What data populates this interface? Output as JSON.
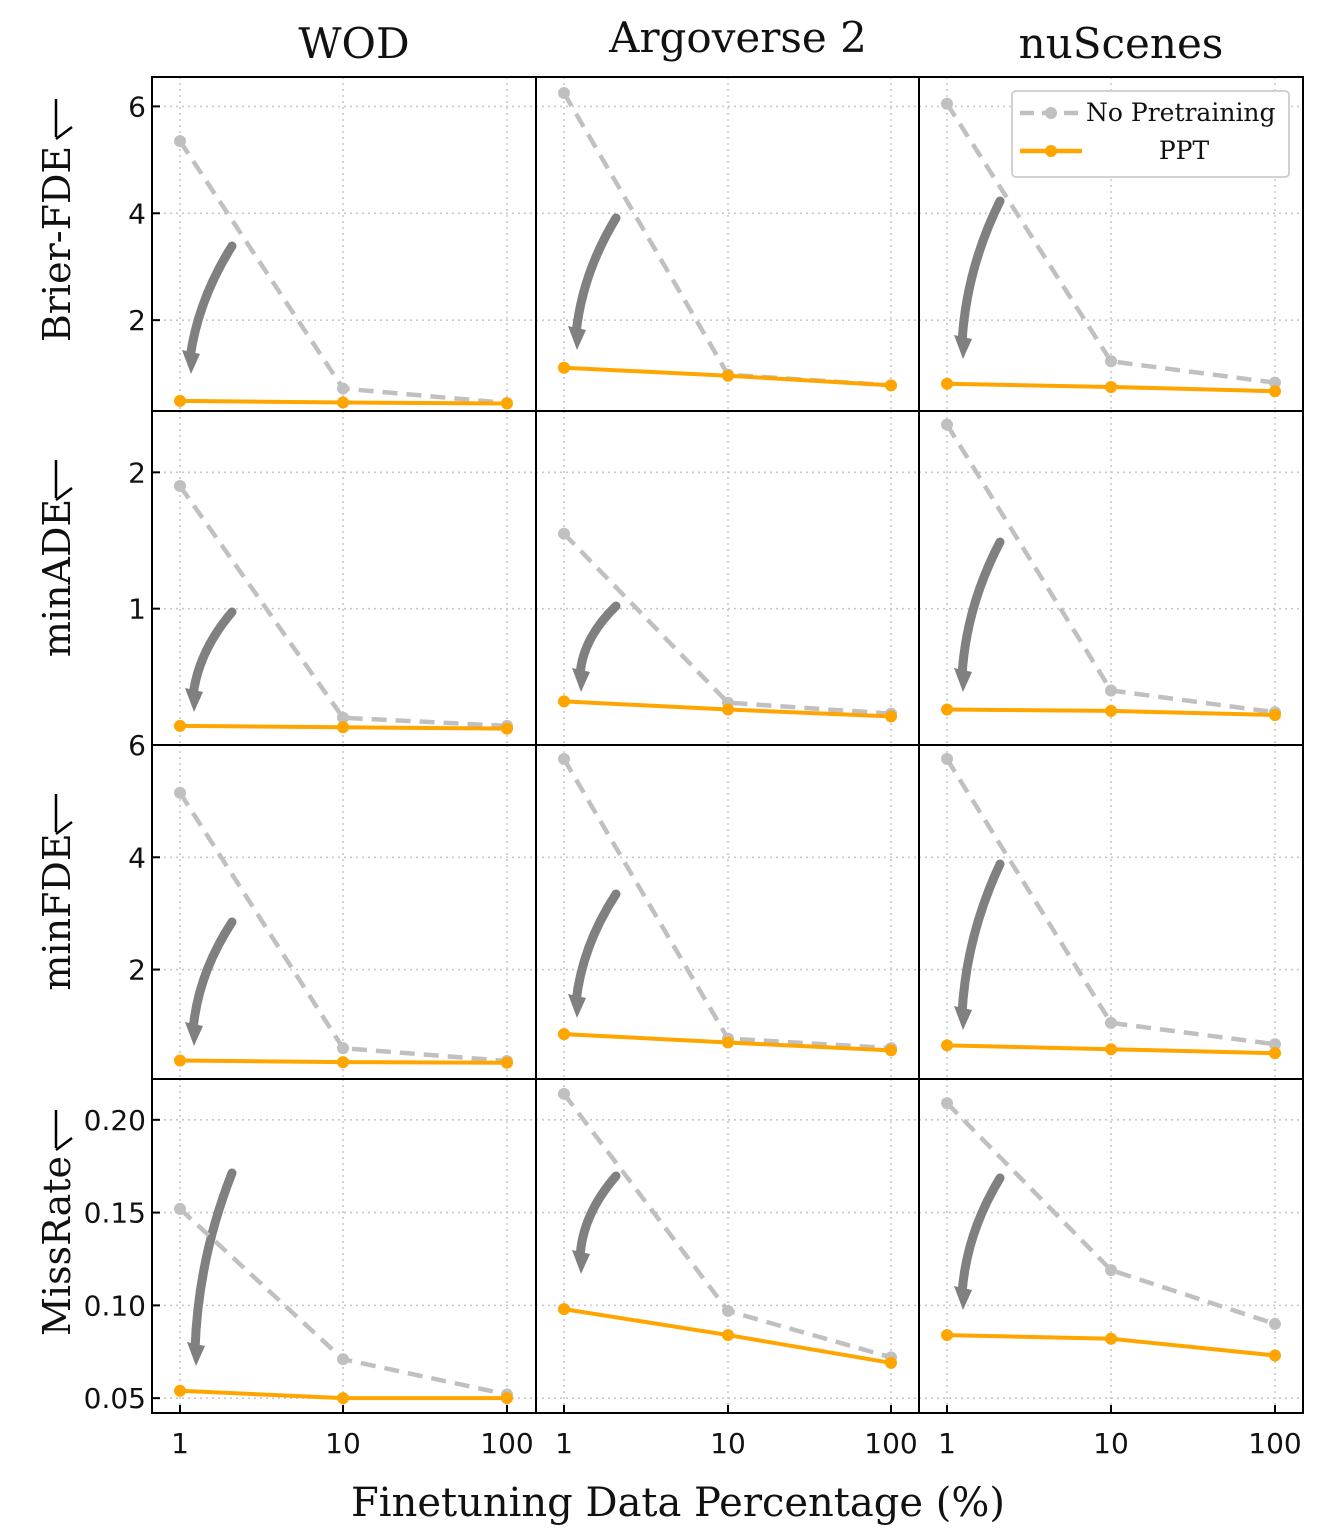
{
  "chart_data": {
    "type": "line",
    "xlabel": "Finetuning Data Percentage (%)",
    "x": [
      1,
      10,
      100
    ],
    "x_tick_labels": [
      "1",
      "10",
      "100"
    ],
    "x_scale": "log",
    "columns": [
      "WOD",
      "Argoverse 2",
      "nuScenes"
    ],
    "legend": {
      "placement": "top-right",
      "entries": [
        {
          "name": "No Pretraining",
          "color": "#c0c0c0",
          "style": "dashed"
        },
        {
          "name": "PPT",
          "color": "#ffa500",
          "style": "solid"
        }
      ]
    },
    "grid": true,
    "colors": {
      "no_pretraining": "#c0c0c0",
      "ppt": "#ffa500",
      "arrow": "#808080"
    },
    "rows": [
      {
        "metric": "Brier-FDE",
        "ylim": [
          0.3,
          6.55
        ],
        "yticks": [
          2,
          4,
          6
        ],
        "ytick_labels": [
          "2",
          "4",
          "6"
        ],
        "panels": [
          {
            "dataset": "WOD",
            "series": [
              {
                "name": "No Pretraining",
                "values": [
                  5.35,
                  0.72,
                  0.45
                ]
              },
              {
                "name": "PPT",
                "values": [
                  0.49,
                  0.46,
                  0.44
                ]
              }
            ]
          },
          {
            "dataset": "Argoverse 2",
            "series": [
              {
                "name": "No Pretraining",
                "values": [
                  6.25,
                  0.98,
                  0.78
                ]
              },
              {
                "name": "PPT",
                "values": [
                  1.11,
                  0.96,
                  0.78
                ]
              }
            ]
          },
          {
            "dataset": "nuScenes",
            "series": [
              {
                "name": "No Pretraining",
                "values": [
                  6.05,
                  1.23,
                  0.83
                ]
              },
              {
                "name": "PPT",
                "values": [
                  0.81,
                  0.75,
                  0.67
                ]
              }
            ]
          }
        ]
      },
      {
        "metric": "minADE",
        "ylim": [
          0.0,
          2.45
        ],
        "yticks": [
          1,
          2
        ],
        "ytick_labels": [
          "1",
          "2"
        ],
        "panels": [
          {
            "dataset": "WOD",
            "series": [
              {
                "name": "No Pretraining",
                "values": [
                  1.9,
                  0.2,
                  0.14
                ]
              },
              {
                "name": "PPT",
                "values": [
                  0.14,
                  0.13,
                  0.12
                ]
              }
            ]
          },
          {
            "dataset": "Argoverse 2",
            "series": [
              {
                "name": "No Pretraining",
                "values": [
                  1.55,
                  0.31,
                  0.23
                ]
              },
              {
                "name": "PPT",
                "values": [
                  0.32,
                  0.26,
                  0.21
                ]
              }
            ]
          },
          {
            "dataset": "nuScenes",
            "series": [
              {
                "name": "No Pretraining",
                "values": [
                  2.35,
                  0.4,
                  0.24
                ]
              },
              {
                "name": "PPT",
                "values": [
                  0.26,
                  0.25,
                  0.22
                ]
              }
            ]
          }
        ]
      },
      {
        "metric": "minFDE",
        "ylim": [
          0.05,
          6.0
        ],
        "yticks": [
          2,
          4,
          6
        ],
        "ytick_labels": [
          "2",
          "4",
          "6"
        ],
        "panels": [
          {
            "dataset": "WOD",
            "series": [
              {
                "name": "No Pretraining",
                "values": [
                  5.15,
                  0.6,
                  0.37
                ]
              },
              {
                "name": "PPT",
                "values": [
                  0.38,
                  0.35,
                  0.34
                ]
              }
            ]
          },
          {
            "dataset": "Argoverse 2",
            "series": [
              {
                "name": "No Pretraining",
                "values": [
                  5.75,
                  0.77,
                  0.6
                ]
              },
              {
                "name": "PPT",
                "values": [
                  0.85,
                  0.7,
                  0.56
                ]
              }
            ]
          },
          {
            "dataset": "nuScenes",
            "series": [
              {
                "name": "No Pretraining",
                "values": [
                  5.75,
                  1.05,
                  0.67
                ]
              },
              {
                "name": "PPT",
                "values": [
                  0.65,
                  0.58,
                  0.51
                ]
              }
            ]
          }
        ]
      },
      {
        "metric": "MissRate",
        "ylim": [
          0.042,
          0.222
        ],
        "yticks": [
          0.05,
          0.1,
          0.15,
          0.2
        ],
        "ytick_labels": [
          "0.05",
          "0.10",
          "0.15",
          "0.20"
        ],
        "panels": [
          {
            "dataset": "WOD",
            "series": [
              {
                "name": "No Pretraining",
                "values": [
                  0.152,
                  0.071,
                  0.052
                ]
              },
              {
                "name": "PPT",
                "values": [
                  0.054,
                  0.05,
                  0.05
                ]
              }
            ]
          },
          {
            "dataset": "Argoverse 2",
            "series": [
              {
                "name": "No Pretraining",
                "values": [
                  0.214,
                  0.097,
                  0.072
                ]
              },
              {
                "name": "PPT",
                "values": [
                  0.098,
                  0.084,
                  0.069
                ]
              }
            ]
          },
          {
            "dataset": "nuScenes",
            "series": [
              {
                "name": "No Pretraining",
                "values": [
                  0.209,
                  0.119,
                  0.09
                ]
              },
              {
                "name": "PPT",
                "values": [
                  0.084,
                  0.082,
                  0.073
                ]
              }
            ]
          }
        ]
      }
    ]
  }
}
